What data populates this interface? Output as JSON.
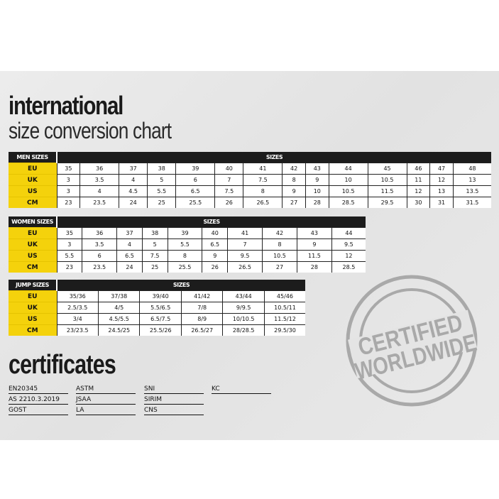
{
  "title": {
    "line1": "international",
    "line2": "size conversion chart"
  },
  "men": {
    "label": "MEN SIZES",
    "header": "SIZES",
    "rows": [
      {
        "label": "EU",
        "values": [
          "35",
          "36",
          "37",
          "38",
          "39",
          "40",
          "41",
          "42",
          "43",
          "44",
          "45",
          "46",
          "47",
          "48"
        ]
      },
      {
        "label": "UK",
        "values": [
          "3",
          "3.5",
          "4",
          "5",
          "6",
          "7",
          "7.5",
          "8",
          "9",
          "10",
          "10.5",
          "11",
          "12",
          "13"
        ]
      },
      {
        "label": "US",
        "values": [
          "3",
          "4",
          "4.5",
          "5.5",
          "6.5",
          "7.5",
          "8",
          "9",
          "10",
          "10.5",
          "11.5",
          "12",
          "13",
          "13.5"
        ]
      },
      {
        "label": "CM",
        "values": [
          "23",
          "23.5",
          "24",
          "25",
          "25.5",
          "26",
          "26.5",
          "27",
          "28",
          "28.5",
          "29.5",
          "30",
          "31",
          "31.5"
        ]
      }
    ]
  },
  "women": {
    "label": "WOMEN SIZES",
    "header": "SIZES",
    "rows": [
      {
        "label": "EU",
        "values": [
          "35",
          "36",
          "37",
          "38",
          "39",
          "40",
          "41",
          "42",
          "43",
          "44"
        ]
      },
      {
        "label": "UK",
        "values": [
          "3",
          "3.5",
          "4",
          "5",
          "5.5",
          "6.5",
          "7",
          "8",
          "9",
          "9.5"
        ]
      },
      {
        "label": "US",
        "values": [
          "5.5",
          "6",
          "6.5",
          "7.5",
          "8",
          "9",
          "9.5",
          "10.5",
          "11.5",
          "12"
        ]
      },
      {
        "label": "CM",
        "values": [
          "23",
          "23.5",
          "24",
          "25",
          "25.5",
          "26",
          "26.5",
          "27",
          "28",
          "28.5"
        ]
      }
    ]
  },
  "jump": {
    "label": "JUMP SIZES",
    "header": "SIZES",
    "rows": [
      {
        "label": "EU",
        "values": [
          "35/36",
          "37/38",
          "39/40",
          "41/42",
          "43/44",
          "45/46"
        ]
      },
      {
        "label": "UK",
        "values": [
          "2.5/3.5",
          "4/5",
          "5.5/6.5",
          "7/8",
          "9/9.5",
          "10.5/11"
        ]
      },
      {
        "label": "US",
        "values": [
          "3/4",
          "4.5/5.5",
          "6.5/7.5",
          "8/9",
          "10/10.5",
          "11.5/12"
        ]
      },
      {
        "label": "CM",
        "values": [
          "23/23.5",
          "24.5/25",
          "25.5/26",
          "26.5/27",
          "28/28.5",
          "29.5/30"
        ]
      }
    ]
  },
  "certificates": {
    "title": "certificates",
    "columns": [
      [
        "EN20345",
        "AS 2210.3.2019",
        "GOST"
      ],
      [
        "ASTM",
        "JSAA",
        "LA"
      ],
      [
        "SNI",
        "SIRIM",
        "CNS"
      ],
      [
        "KC"
      ]
    ]
  },
  "stamp": {
    "line1": "CERTIFIED",
    "line2": "WORLDWIDE",
    "color": "#a9a9a9"
  },
  "colors": {
    "label_bg": "#f4d20c",
    "header_bg": "#1c1c1c"
  }
}
